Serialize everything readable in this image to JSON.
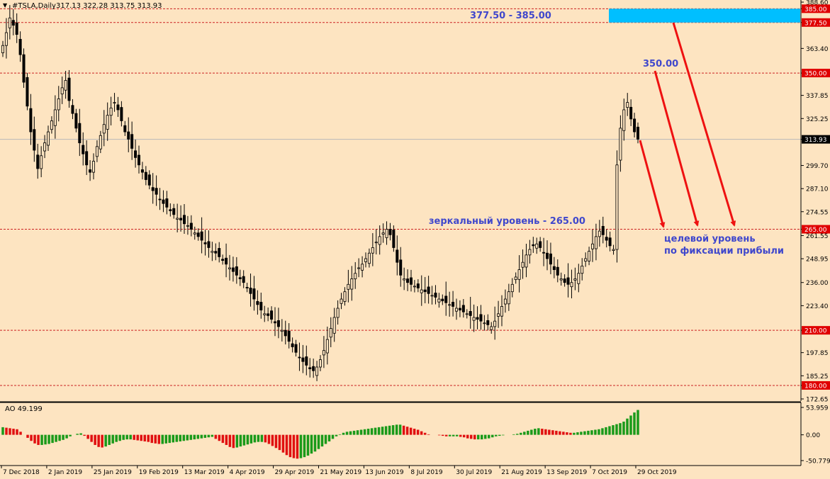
{
  "header": {
    "symbol_title": "#TSLA,Daily",
    "ohlc": "317.13 322.28 313.75 313.93"
  },
  "indicator": {
    "title": "AO 49.199",
    "axis_ticks": [
      "53.959",
      "0.00",
      "-50.779"
    ]
  },
  "annotations": {
    "zone_label": "377.50 - 385.00",
    "target_350": "350.00",
    "mirror_level": "зеркальный уровень - 265.00",
    "profit_target_line1": "целевой уровень",
    "profit_target_line2": "по фиксации прибыли"
  },
  "colors": {
    "background": "#fde4c1",
    "level_line": "#cc2222",
    "level_badge": "#e00000",
    "price_badge": "#000000",
    "zone": "#00bfff",
    "arrow": "#ee1111",
    "annotation_text": "#3f47cc",
    "ao_up": "#1a9a1a",
    "ao_down": "#e01010"
  },
  "chart_data": {
    "type": "candlestick",
    "price_axis": {
      "ticks": [
        "388.60",
        "385.00",
        "377.50",
        "363.40",
        "350.00",
        "337.85",
        "325.25",
        "313.93",
        "299.70",
        "287.10",
        "274.55",
        "265.00",
        "261.55",
        "248.95",
        "236.00",
        "223.40",
        "210.00",
        "197.85",
        "185.25",
        "180.00",
        "172.65"
      ],
      "range": [
        172.65,
        388.6
      ]
    },
    "current_price": "313.93",
    "levels": [
      "385.00",
      "377.50",
      "350.00",
      "265.00",
      "210.00",
      "180.00"
    ],
    "date_labels": [
      "7 Dec 2018",
      "2 Jan 2019",
      "25 Jan 2019",
      "19 Feb 2019",
      "13 Mar 2019",
      "4 Apr 2019",
      "29 Apr 2019",
      "21 May 2019",
      "13 Jun 2019",
      "8 Jul 2019",
      "30 Jul 2019",
      "21 Aug 2019",
      "13 Sep 2019",
      "7 Oct 2019",
      "29 Oct 2019"
    ],
    "closes": [
      365,
      372,
      380,
      376,
      371,
      360,
      345,
      332,
      318,
      308,
      298,
      305,
      312,
      318,
      324,
      330,
      336,
      342,
      346,
      335,
      328,
      320,
      312,
      306,
      300,
      296,
      302,
      310,
      316,
      322,
      327,
      331,
      334,
      330,
      324,
      318,
      314,
      309,
      304,
      300,
      296,
      292,
      289,
      286,
      284,
      281,
      279,
      277,
      275,
      273,
      271,
      270,
      268,
      267,
      265,
      263,
      261,
      259,
      257,
      255,
      253,
      252,
      250,
      248,
      246,
      244,
      242,
      240,
      238,
      236,
      233,
      230,
      227,
      224,
      221,
      219,
      218,
      216,
      214,
      212,
      210,
      207,
      204,
      201,
      198,
      195,
      193,
      191,
      189,
      188,
      190,
      194,
      199,
      205,
      211,
      217,
      222,
      227,
      231,
      235,
      238,
      241,
      244,
      246,
      249,
      252,
      255,
      258,
      261,
      263,
      265,
      262,
      255,
      247,
      240,
      238,
      236,
      235,
      234,
      233,
      232,
      231,
      230,
      229,
      228,
      227,
      226,
      225,
      224,
      223,
      222,
      221,
      220,
      219,
      218,
      217,
      216,
      215,
      214,
      213,
      212,
      215,
      219,
      223,
      227,
      231,
      235,
      239,
      243,
      247,
      251,
      254,
      256,
      257,
      255,
      252,
      249,
      246,
      243,
      240,
      238,
      236,
      235,
      236,
      238,
      241,
      245,
      249,
      253,
      257,
      261,
      264,
      262,
      259,
      256,
      254,
      300,
      320,
      330,
      334,
      325,
      318,
      314
    ],
    "ao": {
      "type": "histogram",
      "range": [
        -50.779,
        53.959
      ],
      "values": [
        15,
        14,
        13,
        12,
        11,
        6,
        0,
        -6,
        -12,
        -17,
        -20,
        -20,
        -19,
        -18,
        -16,
        -14,
        -12,
        -10,
        -7,
        -3,
        0,
        2,
        3,
        -2,
        -8,
        -14,
        -20,
        -24,
        -25,
        -23,
        -20,
        -17,
        -14,
        -12,
        -10,
        -9,
        -9,
        -10,
        -11,
        -12,
        -13,
        -14,
        -16,
        -17,
        -18,
        -18,
        -17,
        -16,
        -15,
        -14,
        -13,
        -12,
        -11,
        -10,
        -9,
        -8,
        -7,
        -6,
        -5,
        -4,
        -8,
        -12,
        -16,
        -20,
        -24,
        -26,
        -25,
        -23,
        -21,
        -19,
        -17,
        -15,
        -14,
        -14,
        -15,
        -18,
        -22,
        -26,
        -30,
        -35,
        -40,
        -44,
        -46,
        -47,
        -46,
        -44,
        -41,
        -37,
        -33,
        -28,
        -23,
        -18,
        -13,
        -8,
        -3,
        1,
        4,
        6,
        7,
        8,
        9,
        10,
        11,
        12,
        13,
        14,
        15,
        16,
        17,
        18,
        19,
        20,
        20,
        18,
        16,
        14,
        12,
        10,
        7,
        4,
        1,
        0,
        0,
        -1,
        -2,
        -3,
        -3,
        -3,
        -3,
        -4,
        -5,
        -7,
        -8,
        -9,
        -9,
        -9,
        -8,
        -7,
        -5,
        -3,
        -2,
        -1,
        0,
        0,
        1,
        2,
        4,
        6,
        8,
        10,
        12,
        13,
        12,
        11,
        10,
        9,
        8,
        7,
        6,
        5,
        4,
        4,
        5,
        6,
        7,
        8,
        9,
        10,
        11,
        13,
        15,
        17,
        19,
        21,
        23,
        26,
        32,
        38,
        44,
        49
      ]
    }
  }
}
